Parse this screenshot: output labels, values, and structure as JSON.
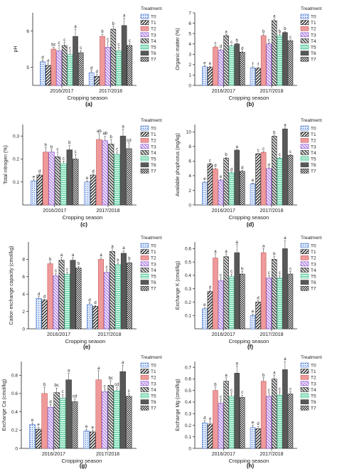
{
  "legend_title": "Treatment",
  "legend_labels": [
    "T0",
    "T1",
    "T2",
    "T3",
    "T4",
    "T5",
    "T6",
    "T7"
  ],
  "colors": {
    "T0": "#dfe8f7",
    "T0_stroke": "#3b6fd0",
    "T1": "#ffffff",
    "T1_stroke": "#222222",
    "T2": "#ef9a9a",
    "T2_stroke": "#c55a5a",
    "T3": "#e9ddf6",
    "T3_stroke": "#8a4fd1",
    "T4": "#d8d8d8",
    "T4_stroke": "#333333",
    "T5": "#bff2dd",
    "T5_stroke": "#3db985",
    "T6": "#585858",
    "T6_stroke": "#3a3a3a",
    "T7": "#e6e6e6",
    "T7_stroke": "#2a2a2a"
  },
  "chart_data": [
    {
      "panel": "(a)",
      "type": "bar",
      "ylabel": "pH",
      "xlabel": "Cropping season",
      "categories": [
        "2016/2017",
        "2017/2018"
      ],
      "ylim": [
        4.5,
        6.5
      ],
      "yticks": [
        5,
        6
      ],
      "grid": false,
      "series": [
        {
          "name": "T0",
          "values": [
            5.15,
            4.85
          ],
          "errors": [
            0.05,
            0.05
          ],
          "letters": [
            "d",
            "d"
          ]
        },
        {
          "name": "T1",
          "values": [
            5.05,
            4.75
          ],
          "errors": [
            0.05,
            0.05
          ],
          "letters": [
            "d",
            "d"
          ]
        },
        {
          "name": "T2",
          "values": [
            5.5,
            5.85
          ],
          "errors": [
            0.05,
            0.06
          ],
          "letters": [
            "bc",
            "b"
          ]
        },
        {
          "name": "T3",
          "values": [
            5.45,
            5.55
          ],
          "errors": [
            0.15,
            0.15
          ],
          "letters": [
            "c",
            "c"
          ]
        },
        {
          "name": "T4",
          "values": [
            5.6,
            6.05
          ],
          "errors": [
            0.08,
            0.08
          ],
          "letters": [
            "c",
            "b"
          ]
        },
        {
          "name": "T5",
          "values": [
            5.35,
            5.45
          ],
          "errors": [
            0.1,
            0.1
          ],
          "letters": [
            "c",
            "c"
          ]
        },
        {
          "name": "T6",
          "values": [
            5.85,
            6.15
          ],
          "errors": [
            0.2,
            0.2
          ],
          "letters": [
            "a",
            "a"
          ]
        },
        {
          "name": "T7",
          "values": [
            5.4,
            5.6
          ],
          "errors": [
            0.06,
            0.06
          ],
          "letters": [
            "c",
            "c"
          ]
        }
      ]
    },
    {
      "panel": "(b)",
      "type": "bar",
      "ylabel": "Organic matter (%)",
      "xlabel": "Cropping season",
      "categories": [
        "2016/2017",
        "2017/2018"
      ],
      "ylim": [
        0,
        7
      ],
      "yticks": [
        0,
        1,
        2,
        3,
        4,
        5,
        6,
        7
      ],
      "grid": false,
      "series": [
        {
          "name": "T0",
          "values": [
            1.8,
            1.7
          ],
          "errors": [
            0.1,
            0.1
          ],
          "letters": [
            "e",
            "f"
          ]
        },
        {
          "name": "T1",
          "values": [
            1.75,
            1.65
          ],
          "errors": [
            0.1,
            0.1
          ],
          "letters": [
            "e",
            "f"
          ]
        },
        {
          "name": "T2",
          "values": [
            3.7,
            4.8
          ],
          "errors": [
            0.1,
            0.15
          ],
          "letters": [
            "c",
            "b"
          ]
        },
        {
          "name": "T3",
          "values": [
            3.4,
            4.0
          ],
          "errors": [
            0.1,
            0.1
          ],
          "letters": [
            "d",
            "c"
          ]
        },
        {
          "name": "T4",
          "values": [
            4.8,
            6.25
          ],
          "errors": [
            0.1,
            0.15
          ],
          "letters": [
            "a",
            "a"
          ]
        },
        {
          "name": "T5",
          "values": [
            3.8,
            4.8
          ],
          "errors": [
            0.1,
            0.15
          ],
          "letters": [
            "c",
            "b"
          ]
        },
        {
          "name": "T6",
          "values": [
            4.0,
            5.1
          ],
          "errors": [
            0.1,
            0.1
          ],
          "letters": [
            "b",
            "b"
          ]
        },
        {
          "name": "T7",
          "values": [
            3.2,
            4.3
          ],
          "errors": [
            0.1,
            0.1
          ],
          "letters": [
            "d",
            "c"
          ]
        }
      ]
    },
    {
      "panel": "(c)",
      "type": "bar",
      "ylabel": "Total nitrogen (%)",
      "xlabel": "Cropping season",
      "categories": [
        "2016/2017",
        "2017/2018"
      ],
      "ylim": [
        0,
        0.35
      ],
      "yticks": [
        0.1,
        0.2,
        0.3
      ],
      "grid": false,
      "series": [
        {
          "name": "T0",
          "values": [
            0.105,
            0.1
          ],
          "errors": [
            0.005,
            0.005
          ],
          "letters": [
            "e",
            "e"
          ]
        },
        {
          "name": "T1",
          "values": [
            0.13,
            0.13
          ],
          "errors": [
            0.005,
            0.005
          ],
          "letters": [
            "d",
            "d"
          ]
        },
        {
          "name": "T2",
          "values": [
            0.23,
            0.285
          ],
          "errors": [
            0.02,
            0.025
          ],
          "letters": [
            "b",
            "ab"
          ]
        },
        {
          "name": "T3",
          "values": [
            0.23,
            0.28
          ],
          "errors": [
            0.01,
            0.02
          ],
          "letters": [
            "b",
            "ab"
          ]
        },
        {
          "name": "T4",
          "values": [
            0.21,
            0.265
          ],
          "errors": [
            0.02,
            0.02
          ],
          "letters": [
            "c",
            "b"
          ]
        },
        {
          "name": "T5",
          "values": [
            0.18,
            0.22
          ],
          "errors": [
            0.01,
            0.01
          ],
          "letters": [
            "c",
            "c"
          ]
        },
        {
          "name": "T6",
          "values": [
            0.24,
            0.3
          ],
          "errors": [
            0.02,
            0.03
          ],
          "letters": [
            "b",
            "a"
          ]
        },
        {
          "name": "T7",
          "values": [
            0.2,
            0.245
          ],
          "errors": [
            0.02,
            0.025
          ],
          "letters": [
            "c",
            "cd"
          ]
        }
      ]
    },
    {
      "panel": "(d)",
      "type": "bar",
      "ylabel": "Available phophorus (mg/kg)",
      "xlabel": "Cropping season",
      "categories": [
        "2016/2017",
        "2017/2018"
      ],
      "ylim": [
        0,
        11
      ],
      "yticks": [
        0,
        2,
        4,
        6,
        8,
        10
      ],
      "grid": false,
      "series": [
        {
          "name": "T0",
          "values": [
            3.1,
            2.9
          ],
          "errors": [
            0.1,
            0.1
          ],
          "letters": [
            "e",
            "e"
          ]
        },
        {
          "name": "T1",
          "values": [
            5.6,
            7.0
          ],
          "errors": [
            0.1,
            0.1
          ],
          "letters": [
            "c",
            "c"
          ]
        },
        {
          "name": "T2",
          "values": [
            4.9,
            7.2
          ],
          "errors": [
            0.1,
            0.1
          ],
          "letters": [
            "d",
            "c"
          ]
        },
        {
          "name": "T3",
          "values": [
            3.4,
            5.0
          ],
          "errors": [
            0.1,
            0.1
          ],
          "letters": [
            "e",
            "d"
          ]
        },
        {
          "name": "T4",
          "values": [
            6.4,
            9.4
          ],
          "errors": [
            0.1,
            0.15
          ],
          "letters": [
            "b",
            "b"
          ]
        },
        {
          "name": "T5",
          "values": [
            4.4,
            6.4
          ],
          "errors": [
            0.1,
            0.1
          ],
          "letters": [
            "d",
            "c"
          ]
        },
        {
          "name": "T6",
          "values": [
            7.5,
            10.4
          ],
          "errors": [
            0.1,
            0.15
          ],
          "letters": [
            "a",
            "a"
          ]
        },
        {
          "name": "T7",
          "values": [
            4.6,
            6.8
          ],
          "errors": [
            0.1,
            0.1
          ],
          "letters": [
            "d",
            "c"
          ]
        }
      ]
    },
    {
      "panel": "(e)",
      "type": "bar",
      "ylabel": "Cation exchange capacity (cmol/kg)",
      "xlabel": "Cropping season",
      "categories": [
        "2016/2017",
        "2017/2018"
      ],
      "ylim": [
        0,
        10
      ],
      "yticks": [
        0,
        2,
        4,
        6,
        8
      ],
      "grid": false,
      "series": [
        {
          "name": "T0",
          "values": [
            3.5,
            2.8
          ],
          "errors": [
            0.2,
            0.2
          ],
          "letters": [
            "d",
            "d"
          ]
        },
        {
          "name": "T1",
          "values": [
            3.3,
            2.6
          ],
          "errors": [
            0.1,
            0.1
          ],
          "letters": [
            "d",
            "d"
          ]
        },
        {
          "name": "T2",
          "values": [
            7.5,
            8.0
          ],
          "errors": [
            0.2,
            0.2
          ],
          "letters": [
            "b",
            "a"
          ]
        },
        {
          "name": "T3",
          "values": [
            6.1,
            6.5
          ],
          "errors": [
            0.3,
            0.3
          ],
          "letters": [
            "c",
            "c"
          ]
        },
        {
          "name": "T4",
          "values": [
            7.9,
            8.9
          ],
          "errors": [
            0.3,
            0.3
          ],
          "letters": [
            "a",
            "a"
          ]
        },
        {
          "name": "T5",
          "values": [
            6.3,
            7.4
          ],
          "errors": [
            0.2,
            0.2
          ],
          "letters": [
            "c",
            "b"
          ]
        },
        {
          "name": "T6",
          "values": [
            7.9,
            8.7
          ],
          "errors": [
            0.3,
            0.3
          ],
          "letters": [
            "a",
            "a"
          ]
        },
        {
          "name": "T7",
          "values": [
            7.0,
            7.6
          ],
          "errors": [
            0.2,
            0.2
          ],
          "letters": [
            "b",
            "b"
          ]
        }
      ]
    },
    {
      "panel": "(f)",
      "type": "bar",
      "ylabel": "Exchange K (cmol/kg)",
      "xlabel": "Cropping season",
      "categories": [
        "2016/2017",
        "2017/2018"
      ],
      "ylim": [
        0,
        0.65
      ],
      "yticks": [
        0.1,
        0.2,
        0.3,
        0.4,
        0.5,
        0.6
      ],
      "grid": false,
      "series": [
        {
          "name": "T0",
          "values": [
            0.15,
            0.1
          ],
          "errors": [
            0.01,
            0.01
          ],
          "letters": [
            "e",
            "e"
          ]
        },
        {
          "name": "T1",
          "values": [
            0.28,
            0.2
          ],
          "errors": [
            0.01,
            0.01
          ],
          "letters": [
            "d",
            "d"
          ]
        },
        {
          "name": "T2",
          "values": [
            0.53,
            0.57
          ],
          "errors": [
            0.03,
            0.03
          ],
          "letters": [
            "a",
            "a"
          ]
        },
        {
          "name": "T3",
          "values": [
            0.36,
            0.38
          ],
          "errors": [
            0.02,
            0.02
          ],
          "letters": [
            "c",
            "c"
          ]
        },
        {
          "name": "T4",
          "values": [
            0.54,
            0.52
          ],
          "errors": [
            0.02,
            0.02
          ],
          "letters": [
            "a",
            "b"
          ]
        },
        {
          "name": "T5",
          "values": [
            0.39,
            0.38
          ],
          "errors": [
            0.02,
            0.02
          ],
          "letters": [
            "c",
            "c"
          ]
        },
        {
          "name": "T6",
          "values": [
            0.57,
            0.6
          ],
          "errors": [
            0.06,
            0.06
          ],
          "letters": [
            "a",
            "a"
          ]
        },
        {
          "name": "T7",
          "values": [
            0.41,
            0.41
          ],
          "errors": [
            0.02,
            0.02
          ],
          "letters": [
            "b",
            "c"
          ]
        }
      ]
    },
    {
      "panel": "(g)",
      "type": "bar",
      "ylabel": "Exchange Ca (cmol/kg)",
      "xlabel": "Cropping season",
      "categories": [
        "2016/2017",
        "2017/2018"
      ],
      "ylim": [
        0,
        0.95
      ],
      "yticks": [
        0,
        0.2,
        0.4,
        0.6,
        0.8
      ],
      "grid": false,
      "series": [
        {
          "name": "T0",
          "values": [
            0.26,
            0.19
          ],
          "errors": [
            0.02,
            0.02
          ],
          "letters": [
            "e",
            "e"
          ]
        },
        {
          "name": "T1",
          "values": [
            0.21,
            0.18
          ],
          "errors": [
            0.02,
            0.02
          ],
          "letters": [
            "e",
            "e"
          ]
        },
        {
          "name": "T2",
          "values": [
            0.6,
            0.75
          ],
          "errors": [
            0.07,
            0.1
          ],
          "letters": [
            "b",
            "a"
          ]
        },
        {
          "name": "T3",
          "values": [
            0.45,
            0.62
          ],
          "errors": [
            0.03,
            0.03
          ],
          "letters": [
            "d",
            "c"
          ]
        },
        {
          "name": "T4",
          "values": [
            0.61,
            0.69
          ],
          "errors": [
            0.05,
            0.05
          ],
          "letters": [
            "bc",
            "bc"
          ]
        },
        {
          "name": "T5",
          "values": [
            0.55,
            0.63
          ],
          "errors": [
            0.04,
            0.04
          ],
          "letters": [
            "c",
            "cd"
          ]
        },
        {
          "name": "T6",
          "values": [
            0.75,
            0.84
          ],
          "errors": [
            0.07,
            0.07
          ],
          "letters": [
            "a",
            "a"
          ]
        },
        {
          "name": "T7",
          "values": [
            0.51,
            0.57
          ],
          "errors": [
            0.03,
            0.03
          ],
          "letters": [
            "cd",
            "c"
          ]
        }
      ]
    },
    {
      "panel": "(h)",
      "type": "bar",
      "ylabel": "Exchange Mg (cmol/kg)",
      "xlabel": "Cropping season",
      "categories": [
        "2016/2017",
        "2017/2018"
      ],
      "ylim": [
        0,
        0.75
      ],
      "yticks": [
        0,
        0.1,
        0.2,
        0.3,
        0.4,
        0.5,
        0.6,
        0.7
      ],
      "grid": false,
      "series": [
        {
          "name": "T0",
          "values": [
            0.22,
            0.18
          ],
          "errors": [
            0.02,
            0.02
          ],
          "letters": [
            "d",
            "e"
          ]
        },
        {
          "name": "T1",
          "values": [
            0.21,
            0.17
          ],
          "errors": [
            0.02,
            0.02
          ],
          "letters": [
            "d",
            "d"
          ]
        },
        {
          "name": "T2",
          "values": [
            0.5,
            0.58
          ],
          "errors": [
            0.03,
            0.03
          ],
          "letters": [
            "b",
            "b"
          ]
        },
        {
          "name": "T3",
          "values": [
            0.39,
            0.45
          ],
          "errors": [
            0.03,
            0.03
          ],
          "letters": [
            "c",
            "c"
          ]
        },
        {
          "name": "T4",
          "values": [
            0.58,
            0.6
          ],
          "errors": [
            0.03,
            0.03
          ],
          "letters": [
            "a",
            "a"
          ]
        },
        {
          "name": "T5",
          "values": [
            0.45,
            0.46
          ],
          "errors": [
            0.03,
            0.03
          ],
          "letters": [
            "c",
            "c"
          ]
        },
        {
          "name": "T6",
          "values": [
            0.65,
            0.68
          ],
          "errors": [
            0.06,
            0.07
          ],
          "letters": [
            "a",
            "a"
          ]
        },
        {
          "name": "T7",
          "values": [
            0.44,
            0.47
          ],
          "errors": [
            0.02,
            0.02
          ],
          "letters": [
            "c",
            "c"
          ]
        }
      ]
    }
  ]
}
